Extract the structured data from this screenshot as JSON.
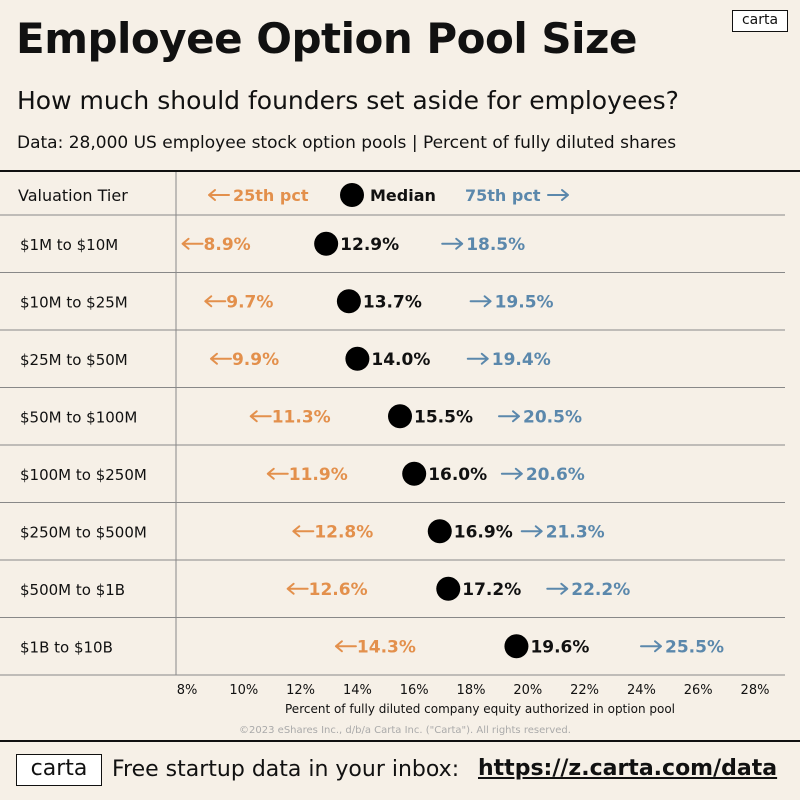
{
  "brand": {
    "logo_text": "carta"
  },
  "header": {
    "title": "Employee Option Pool Size",
    "subtitle": "How much should founders set aside for employees?",
    "data_note": "Data: 28,000 US employee stock option pools | Percent of fully diluted shares"
  },
  "footer": {
    "text": "Free startup data in your inbox:",
    "link": "https://z.carta.com/data",
    "copyright": "©2023 eShares Inc., d/b/a Carta Inc. (\"Carta\"). All rights reserved."
  },
  "colors": {
    "p25": "#e3904c",
    "p75": "#5b88ac",
    "median": "#000000",
    "background": "#f6f0e7"
  },
  "chart_data": {
    "type": "scatter",
    "title": "Employee Option Pool Size",
    "row_header": "Valuation Tier",
    "xlabel": "Percent of fully diluted company equity authorized in option pool",
    "xlim": [
      8,
      28
    ],
    "x_ticks": [
      "8%",
      "10%",
      "12%",
      "14%",
      "16%",
      "18%",
      "20%",
      "22%",
      "24%",
      "26%",
      "28%"
    ],
    "categories": [
      "$1M to $10M",
      "$10M to $25M",
      "$25M to $50M",
      "$50M to $100M",
      "$100M to $250M",
      "$250M to $500M",
      "$500M to $1B",
      "$1B to $10B"
    ],
    "legend": [
      {
        "key": "p25",
        "label": "25th pct"
      },
      {
        "key": "median",
        "label": "Median"
      },
      {
        "key": "p75",
        "label": "75th pct"
      }
    ],
    "series": [
      {
        "name": "25th pct",
        "key": "p25",
        "values": [
          8.9,
          9.7,
          9.9,
          11.3,
          11.9,
          12.8,
          12.6,
          14.3
        ]
      },
      {
        "name": "Median",
        "key": "median",
        "values": [
          12.9,
          13.7,
          14.0,
          15.5,
          16.0,
          16.9,
          17.2,
          19.6
        ]
      },
      {
        "name": "75th pct",
        "key": "p75",
        "values": [
          18.5,
          19.5,
          19.4,
          20.5,
          20.6,
          21.3,
          22.2,
          25.5
        ]
      }
    ],
    "value_labels": {
      "p25": [
        "8.9%",
        "9.7%",
        "9.9%",
        "11.3%",
        "11.9%",
        "12.8%",
        "12.6%",
        "14.3%"
      ],
      "median": [
        "12.9%",
        "13.7%",
        "14.0%",
        "15.5%",
        "16.0%",
        "16.9%",
        "17.2%",
        "19.6%"
      ],
      "p75": [
        "18.5%",
        "19.5%",
        "19.4%",
        "20.5%",
        "20.6%",
        "21.3%",
        "22.2%",
        "25.5%"
      ]
    },
    "grid": false
  }
}
